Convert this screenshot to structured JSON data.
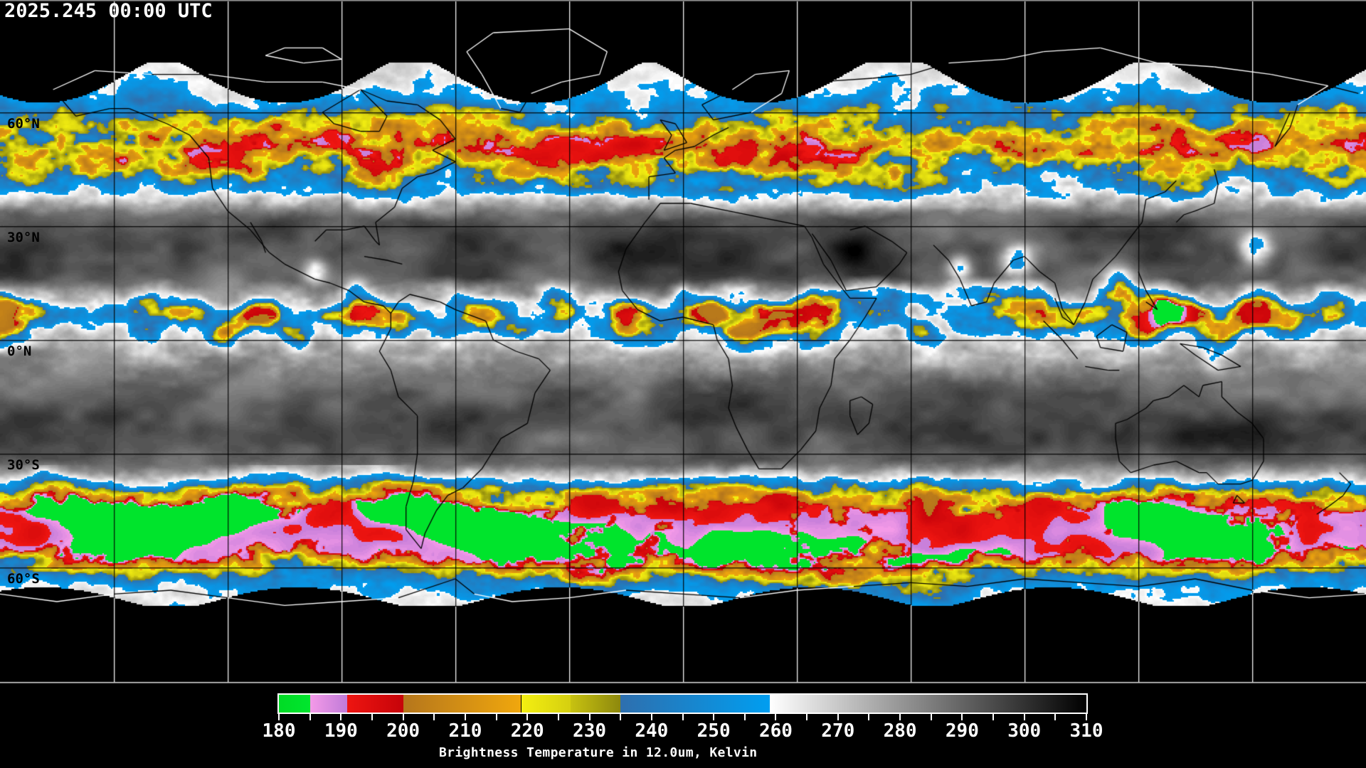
{
  "header": {
    "timestamp": "2025.245 00:00 UTC"
  },
  "map": {
    "latitude_labels": [
      "60°N",
      "30°N",
      "0°N",
      "30°S",
      "60°S"
    ],
    "graticule": {
      "lon_step_deg": 30,
      "lat_step_deg": 30
    },
    "no_data_color": "#000000",
    "coastline_color_over_data": "#000000",
    "coastline_color_over_nodata": "#ffffff",
    "grid_color_over_data": "#000000",
    "grid_color_over_nodata": "#ffffff"
  },
  "colorbar": {
    "title": "Brightness Temperature in 12.0um, Kelvin",
    "range_k": [
      180,
      310
    ],
    "major_tick_step_k": 10,
    "minor_tick_step_k": 5,
    "tick_labels": [
      "180",
      "190",
      "200",
      "210",
      "220",
      "230",
      "240",
      "250",
      "260",
      "270",
      "280",
      "290",
      "300",
      "310"
    ],
    "segments": [
      {
        "from_k": 180,
        "to_k": 185,
        "from_color": "#00db25",
        "to_color": "#00e62e",
        "name": "green"
      },
      {
        "from_k": 185,
        "to_k": 191,
        "from_color": "#f49ae8",
        "to_color": "#c07bd8",
        "name": "pink"
      },
      {
        "from_k": 191,
        "to_k": 200,
        "from_color": "#ee1511",
        "to_color": "#c60309",
        "name": "red"
      },
      {
        "from_k": 200,
        "to_k": 219,
        "from_color": "#b5761c",
        "to_color": "#f0a70d",
        "name": "orange"
      },
      {
        "from_k": 219,
        "to_k": 227,
        "from_color": "#f4ef11",
        "to_color": "#d5cf10",
        "name": "yellow"
      },
      {
        "from_k": 227,
        "to_k": 235,
        "from_color": "#c8c210",
        "to_color": "#8d880d",
        "name": "olive"
      },
      {
        "from_k": 235,
        "to_k": 259,
        "from_color": "#2e6fae",
        "to_color": "#009ef0",
        "name": "blue"
      },
      {
        "from_k": 259,
        "to_k": 310,
        "from_color": "#ffffff",
        "to_color": "#000000",
        "name": "grayscale"
      }
    ]
  }
}
